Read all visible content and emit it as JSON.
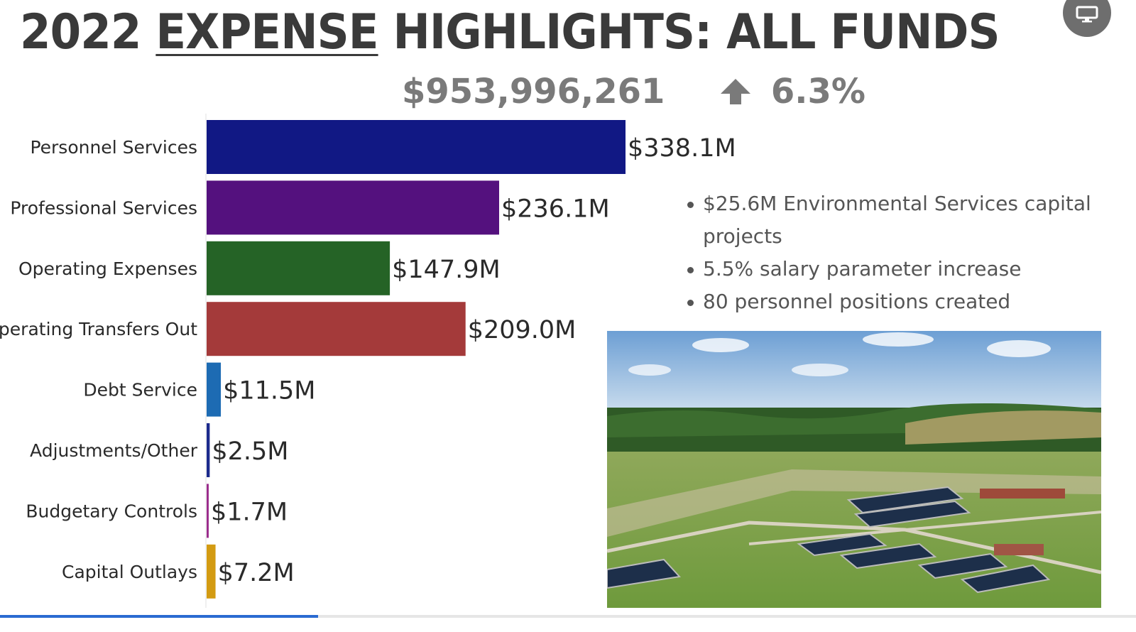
{
  "title": {
    "year": "2022",
    "underlined": "EXPENSE",
    "rest": "HIGHLIGHTS: ALL FUNDS"
  },
  "total": {
    "amount": "$953,996,261",
    "change": "6.3%",
    "change_icon": "arrow-up-icon"
  },
  "present_button_icon": "monitor-icon",
  "chart_data": {
    "type": "bar",
    "orientation": "horizontal",
    "title": "",
    "xlabel": "",
    "ylabel": "",
    "categories": [
      "Personnel Services",
      "Professional Services",
      "Operating Expenses",
      "Operating Transfers Out",
      "Debt Service",
      "Adjustments/Other",
      "Budgetary Controls",
      "Capital Outlays"
    ],
    "values": [
      338.1,
      236.1,
      147.9,
      209.0,
      11.5,
      2.5,
      1.7,
      7.2
    ],
    "data_labels": [
      "$338.1M",
      "$236.1M",
      "$147.9M",
      "$209.0M",
      "$11.5M",
      "$2.5M",
      "$1.7M",
      "$7.2M"
    ],
    "colors": [
      "#111884",
      "#54117e",
      "#256326",
      "#a43a3a",
      "#1d6bb3",
      "#1c2a8c",
      "#9b2d8c",
      "#d39b12"
    ],
    "xlim": [
      0,
      338.1
    ],
    "grid": false,
    "legend": "none"
  },
  "highlights": [
    "$25.6M Environmental Services capital projects",
    "5.5% salary parameter increase",
    "80 personnel positions created"
  ],
  "photo": {
    "subject": "aerial view of wastewater treatment plant"
  },
  "progress": {
    "fraction": 0.28
  }
}
